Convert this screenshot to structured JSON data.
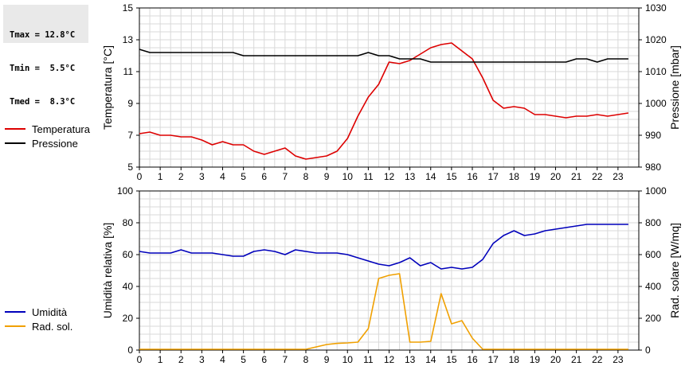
{
  "stats": {
    "tmax": "Tmax = 12.8°C",
    "tmin": "Tmin =  5.5°C",
    "tmed": "Tmed =  8.3°C"
  },
  "legend_top": [
    {
      "label": "Temperatura",
      "color": "#dd0000"
    },
    {
      "label": "Pressione",
      "color": "#000000"
    }
  ],
  "legend_bottom": [
    {
      "label": "Umidità",
      "color": "#0000bb"
    },
    {
      "label": "Rad. sol.",
      "color": "#f0a000"
    }
  ],
  "chart_data": [
    {
      "type": "line",
      "xlim": [
        0,
        24
      ],
      "xticks": [
        0,
        1,
        2,
        3,
        4,
        5,
        6,
        7,
        8,
        9,
        10,
        11,
        12,
        13,
        14,
        15,
        16,
        17,
        18,
        19,
        20,
        21,
        22,
        23
      ],
      "grid": true,
      "ylabel": "Temperatura [°C]",
      "ylim": [
        5,
        15
      ],
      "yticks": [
        5,
        7,
        9,
        11,
        13,
        15
      ],
      "ylabel_right": "Pressione [mbar]",
      "ylim_right": [
        980,
        1030
      ],
      "yticks_right": [
        980,
        990,
        1000,
        1010,
        1020,
        1030
      ],
      "series": [
        {
          "name": "Temperatura",
          "color": "#dd0000",
          "axis": "left",
          "x": [
            0,
            0.5,
            1,
            1.5,
            2,
            2.5,
            3,
            3.5,
            4,
            4.5,
            5,
            5.5,
            6,
            6.5,
            7,
            7.5,
            8,
            8.5,
            9,
            9.5,
            10,
            10.5,
            11,
            11.5,
            12,
            12.5,
            13,
            13.5,
            14,
            14.5,
            15,
            15.5,
            16,
            16.5,
            17,
            17.5,
            18,
            18.5,
            19,
            19.5,
            20,
            20.5,
            21,
            21.5,
            22,
            22.5,
            23,
            23.5
          ],
          "y": [
            7.1,
            7.2,
            7.0,
            7.0,
            6.9,
            6.9,
            6.7,
            6.4,
            6.6,
            6.4,
            6.4,
            6.0,
            5.8,
            6.0,
            6.2,
            5.7,
            5.5,
            5.6,
            5.7,
            6.0,
            6.8,
            8.2,
            9.4,
            10.2,
            11.6,
            11.5,
            11.7,
            12.1,
            12.5,
            12.7,
            12.8,
            12.3,
            11.8,
            10.6,
            9.2,
            8.7,
            8.8,
            8.7,
            8.3,
            8.3,
            8.2,
            8.1,
            8.2,
            8.2,
            8.3,
            8.2,
            8.3,
            8.4
          ]
        },
        {
          "name": "Pressione",
          "color": "#000000",
          "axis": "right",
          "x": [
            0,
            0.5,
            1,
            2,
            3,
            4,
            4.5,
            5,
            5.5,
            6,
            7,
            8,
            9,
            10,
            10.5,
            11,
            11.5,
            12,
            12.5,
            13,
            13.5,
            14,
            14.5,
            15,
            16,
            17,
            18,
            19,
            20,
            20.5,
            21,
            21.5,
            22,
            22.5,
            23,
            23.5
          ],
          "y": [
            1017,
            1016,
            1016,
            1016,
            1016,
            1016,
            1016,
            1015,
            1015,
            1015,
            1015,
            1015,
            1015,
            1015,
            1015,
            1016,
            1015,
            1015,
            1014,
            1014,
            1014,
            1013,
            1013,
            1013,
            1013,
            1013,
            1013,
            1013,
            1013,
            1013,
            1014,
            1014,
            1013,
            1014,
            1014,
            1014
          ]
        }
      ]
    },
    {
      "type": "line",
      "xlim": [
        0,
        24
      ],
      "xticks": [
        0,
        1,
        2,
        3,
        4,
        5,
        6,
        7,
        8,
        9,
        10,
        11,
        12,
        13,
        14,
        15,
        16,
        17,
        18,
        19,
        20,
        21,
        22,
        23
      ],
      "grid": true,
      "ylabel": "Umidità relativa [%]",
      "ylim": [
        0,
        100
      ],
      "yticks": [
        0,
        20,
        40,
        60,
        80,
        100
      ],
      "ylabel_right": "Rad. solare [W/mq]",
      "ylim_right": [
        0,
        1000
      ],
      "yticks_right": [
        0,
        200,
        400,
        600,
        800,
        1000
      ],
      "series": [
        {
          "name": "Umidità",
          "color": "#0000bb",
          "axis": "left",
          "x": [
            0,
            0.5,
            1,
            1.5,
            2,
            2.5,
            3,
            3.5,
            4,
            4.5,
            5,
            5.5,
            6,
            6.5,
            7,
            7.5,
            8,
            8.5,
            9,
            9.5,
            10,
            10.5,
            11,
            11.5,
            12,
            12.5,
            13,
            13.5,
            14,
            14.5,
            15,
            15.5,
            16,
            16.5,
            17,
            17.5,
            18,
            18.5,
            19,
            19.5,
            20,
            20.5,
            21,
            21.5,
            22,
            22.5,
            23,
            23.5
          ],
          "y": [
            62,
            61,
            61,
            61,
            63,
            61,
            61,
            61,
            60,
            59,
            59,
            62,
            63,
            62,
            60,
            63,
            62,
            61,
            61,
            61,
            60,
            58,
            56,
            54,
            53,
            55,
            58,
            53,
            55,
            51,
            52,
            51,
            52,
            57,
            67,
            72,
            75,
            72,
            73,
            75,
            76,
            77,
            78,
            79,
            79,
            79,
            79,
            79
          ]
        },
        {
          "name": "Rad. sol.",
          "color": "#f0a000",
          "axis": "right",
          "x": [
            0,
            0.5,
            1,
            1.5,
            2,
            2.5,
            3,
            3.5,
            4,
            4.5,
            5,
            5.5,
            6,
            6.5,
            7,
            7.5,
            8,
            8.5,
            9,
            9.5,
            10,
            10.5,
            11,
            11.5,
            12,
            12.5,
            13,
            13.5,
            14,
            14.5,
            15,
            15.5,
            16,
            16.5,
            17,
            17.5,
            18,
            18.5,
            19,
            19.5,
            20,
            20.5,
            21,
            21.5,
            22,
            22.5,
            23,
            23.5
          ],
          "y": [
            5,
            5,
            5,
            5,
            5,
            5,
            5,
            5,
            5,
            5,
            5,
            5,
            5,
            5,
            5,
            5,
            5,
            20,
            35,
            42,
            45,
            50,
            135,
            450,
            470,
            480,
            50,
            50,
            55,
            355,
            165,
            185,
            75,
            5,
            5,
            5,
            5,
            5,
            5,
            5,
            5,
            5,
            5,
            5,
            5,
            5,
            5,
            5
          ]
        }
      ]
    }
  ]
}
